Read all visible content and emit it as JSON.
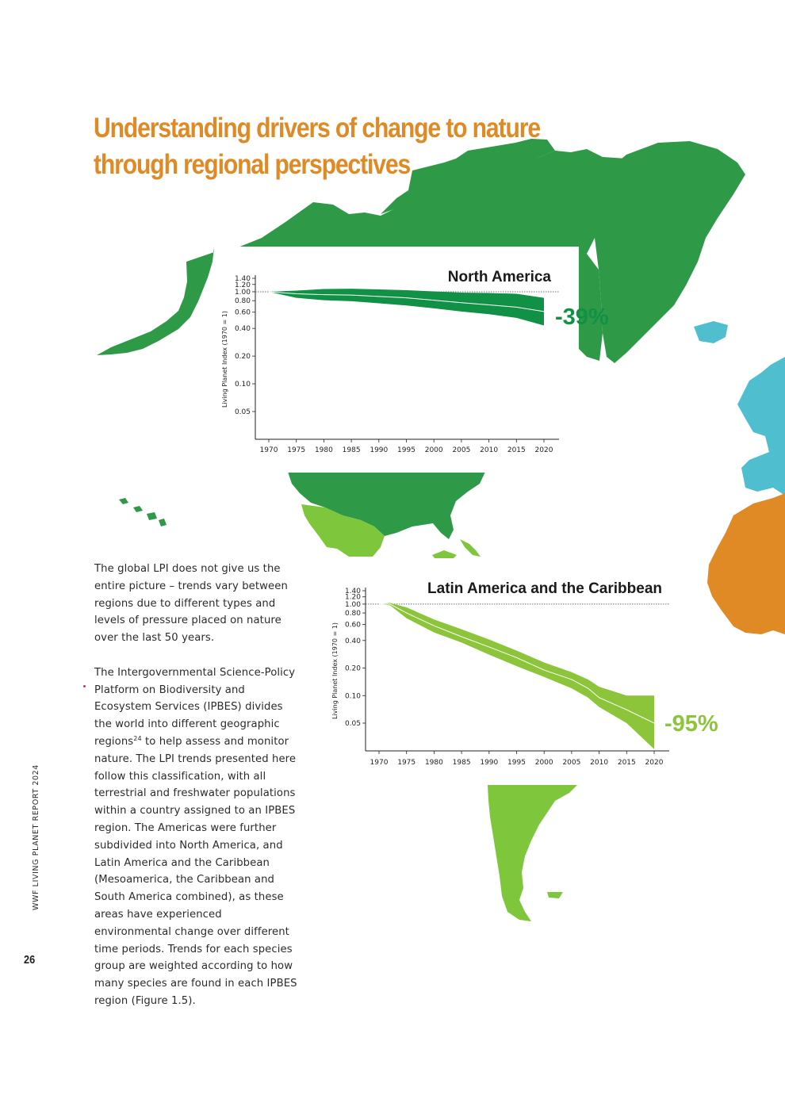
{
  "colors": {
    "title": "#e08a25",
    "north_america_green": "#2e9a48",
    "latin_america_green": "#7ec73c",
    "europe_blue": "#4fbfd0",
    "africa_orange": "#e08a25",
    "na_band": "#119146",
    "la_band": "#8cc43a"
  },
  "title_line1": "Understanding drivers of change to nature",
  "title_line2": "through regional perspectives",
  "body": {
    "p1": "The global LPI does not give us the entire picture – trends vary between regions due to different types and levels of pressure placed on nature over the last 50 years.",
    "p2_before": "The Intergovernmental Science-Policy Platform on Biodiversity and Ecosystem Services (IPBES) divides the world into different geographic regions",
    "p2_ref": "24",
    "p2_after": " to help assess and monitor nature. The LPI trends presented here follow this classification, with all terrestrial and freshwater populations within a country assigned to an IPBES region. The Americas were further subdivided into North America, and Latin America and the Caribbean (Mesoamerica, the Caribbean and South America combined), as these areas have experienced environmental change over different time periods. Trends for each species group are weighted according to how many species are found in each IPBES region (Figure 1.5)."
  },
  "side_label": "WWF LIVING PLANET REPORT 2024",
  "page_number": "26",
  "chart_data": [
    {
      "type": "area",
      "title": "North America",
      "change_label": "-39%",
      "ylabel": "Living Planet Index (1970 = 1)",
      "y_scale": "log",
      "y_ticks": [
        "1.40",
        "1.20",
        "1.00",
        "0.80",
        "0.60",
        "0.40",
        "0.20",
        "0.10",
        "0.05"
      ],
      "x_ticks": [
        "1970",
        "1975",
        "1980",
        "1985",
        "1990",
        "1995",
        "2000",
        "2005",
        "2010",
        "2015",
        "2020"
      ],
      "baseline": 1.0,
      "x": [
        1970,
        1975,
        1980,
        1985,
        1990,
        1995,
        2000,
        2005,
        2010,
        2015,
        2020
      ],
      "series": [
        {
          "values": [
            1.0,
            0.95,
            0.93,
            0.92,
            0.89,
            0.86,
            0.81,
            0.76,
            0.72,
            0.68,
            0.61
          ]
        },
        {
          "values": [
            1.0,
            1.03,
            1.07,
            1.08,
            1.06,
            1.04,
            1.01,
            0.98,
            0.97,
            0.95,
            0.86
          ]
        },
        {
          "values": [
            1.0,
            0.86,
            0.81,
            0.79,
            0.75,
            0.71,
            0.66,
            0.61,
            0.57,
            0.52,
            0.43
          ]
        }
      ]
    },
    {
      "type": "area",
      "title": "Latin America and the Caribbean",
      "change_label": "-95%",
      "ylabel": "Living Planet Index (1970 = 1)",
      "y_scale": "log",
      "y_ticks": [
        "1.40",
        "1.20",
        "1.00",
        "0.80",
        "0.60",
        "0.40",
        "0.20",
        "0.10",
        "0.05"
      ],
      "x_ticks": [
        "1970",
        "1975",
        "1980",
        "1985",
        "1990",
        "1995",
        "2000",
        "2005",
        "2010",
        "2015",
        "2020"
      ],
      "baseline": 1.0,
      "x": [
        1970,
        1972,
        1975,
        1980,
        1985,
        1990,
        1995,
        2000,
        2005,
        2008,
        2010,
        2015,
        2020
      ],
      "series": [
        {
          "values": [
            1.0,
            1.0,
            0.8,
            0.58,
            0.44,
            0.34,
            0.26,
            0.19,
            0.15,
            0.12,
            0.095,
            0.07,
            0.05
          ]
        },
        {
          "values": [
            1.0,
            1.03,
            0.92,
            0.68,
            0.53,
            0.41,
            0.31,
            0.23,
            0.18,
            0.15,
            0.125,
            0.1,
            0.1
          ]
        },
        {
          "values": [
            1.0,
            0.97,
            0.7,
            0.49,
            0.38,
            0.28,
            0.21,
            0.16,
            0.12,
            0.095,
            0.075,
            0.05,
            0.026
          ]
        }
      ]
    }
  ]
}
